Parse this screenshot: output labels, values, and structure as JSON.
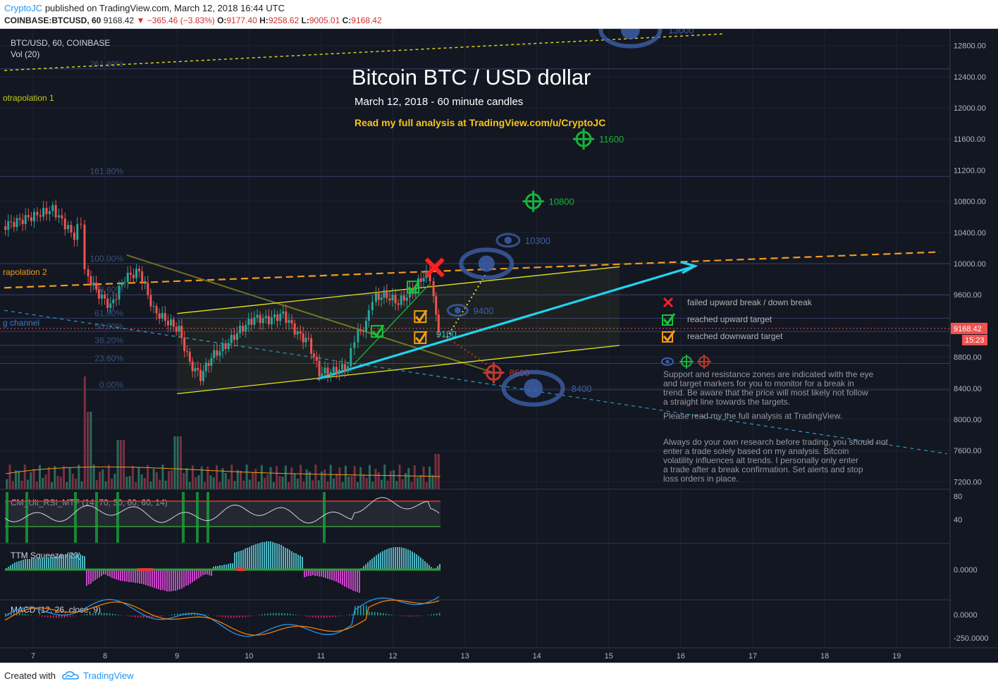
{
  "header": {
    "author": "CryptoJC",
    "published": "published on TradingView.com, March 12, 2018 16:44 UTC",
    "symbol_line": "COINBASE:BTCUSD, 60",
    "last": "9168.42",
    "change": "▼ −365.46 (−3.83%)",
    "ohlc": {
      "o_label": "O:",
      "o": "9177.40",
      "h_label": "H:",
      "h": "9258.62",
      "l_label": "L:",
      "l": "9005.01",
      "c_label": "C:",
      "c": "9168.42"
    }
  },
  "footer": {
    "created": "Created with",
    "brand": "TradingView"
  },
  "chart_title": "Bitcoin BTC / USD dollar",
  "chart_subtitle": "March 12, 2018 - 60 minute candles",
  "chart_link": "Read my full analysis at TradingView.com/u/CryptoJC",
  "pane_labels": {
    "main": "BTC/USD, 60, COINBASE",
    "vol": "Vol (20)",
    "rsi": "CM_Ult_RSI_MTF (14, 70, 30, 60, 60, 14)",
    "ttm": "TTM Squeeze (20)",
    "macd": "MACD (12, 26, close, 9)"
  },
  "drawing_labels": {
    "extrapolation1": "otrapolation 1",
    "extrapolation2": "rapolation 2",
    "channel": "g channel"
  },
  "fib_levels": [
    {
      "label": "261.80%",
      "price": 12500
    },
    {
      "label": "161.80%",
      "price": 11120
    },
    {
      "label": "100.00%",
      "price": 10000
    },
    {
      "label": "78.60%",
      "price": 9600
    },
    {
      "label": "61.80%",
      "price": 9300
    },
    {
      "label": "50.00%",
      "price": 9130
    },
    {
      "label": "38.20%",
      "price": 8950
    },
    {
      "label": "23.60%",
      "price": 8720
    },
    {
      "label": "0.00%",
      "price": 8380
    }
  ],
  "targets": [
    {
      "label": "13000",
      "price": 13000,
      "date": 15.3,
      "kind": "eye",
      "color": "#3d5fa8"
    },
    {
      "label": "11600",
      "price": 11600,
      "date": 14.65,
      "kind": "crosshair",
      "color": "#19b23b"
    },
    {
      "label": "10800",
      "price": 10800,
      "date": 13.95,
      "kind": "crosshair",
      "color": "#19b23b"
    },
    {
      "label": "10300",
      "price": 10300,
      "date": 13.6,
      "kind": "eye",
      "color": "#3d5fa8"
    },
    {
      "label": "9400",
      "price": 9400,
      "date": 12.9,
      "kind": "eye",
      "color": "#3d5fa8"
    },
    {
      "label": "9100",
      "price": 9100,
      "date": 12.6,
      "kind": "text",
      "color": "#2ec4c4"
    },
    {
      "label": "8600",
      "price": 8600,
      "date": 13.4,
      "kind": "crosshair",
      "color": "#c0392b"
    },
    {
      "label": "8400",
      "price": 8400,
      "date": 13.95,
      "kind": "eye",
      "color": "#3d5fa8"
    }
  ],
  "legend": [
    {
      "icon": "red-cross-icon",
      "label": "failed upward break / down break",
      "color": "#ff2020"
    },
    {
      "icon": "green-check-icon",
      "label": "reached upward target",
      "color": "#19c23b"
    },
    {
      "icon": "orange-check-icon",
      "label": "reached downward target",
      "color": "#f39c12"
    }
  ],
  "notes": {
    "p1": "Support and resistance zones are indicated with the eye and target markers for you to monitor for a break in trend. Be aware that the price will most likely not follow a straight line towards the targets.",
    "p2": "Please read my the full analysis at TradingView.",
    "p3": "Always do your own research before trading, you should not enter a trade solely based on my analysis. Bitcoin volatility influences alt trends. I personally only enter a trade after a break confirmation. Set alerts and stop loss orders in place."
  },
  "price_axis": {
    "ticks": [
      "12800.00",
      "12400.00",
      "12000.00",
      "11600.00",
      "11200.00",
      "10800.00",
      "10400.00",
      "10000.00",
      "9600.00",
      "8800.00",
      "8400.00",
      "8000.00",
      "7600.00",
      "7200.00"
    ],
    "last_price_label": "9168.42",
    "countdown": "15:23"
  },
  "rsi_axis": [
    "80",
    "40"
  ],
  "ttm_axis": [
    "0.0000"
  ],
  "macd_axis": [
    "0.0000",
    "-250.0000"
  ],
  "time_axis": [
    "7",
    "8",
    "9",
    "10",
    "11",
    "12",
    "13",
    "14",
    "15",
    "16",
    "17",
    "18",
    "19"
  ],
  "chart_data": {
    "type": "candlestick",
    "title": "Bitcoin BTC / USD dollar",
    "subtitle": "March 12, 2018 - 60 minute candles",
    "x_unit": "day of March 2018",
    "xlim": [
      6.6,
      19.8
    ],
    "ylim": [
      7100,
      12950
    ],
    "price_path": [
      [
        6.6,
        10480
      ],
      [
        7.0,
        10600
      ],
      [
        7.3,
        10700
      ],
      [
        7.6,
        10350
      ],
      [
        7.7,
        10550
      ],
      [
        7.75,
        9900
      ],
      [
        7.9,
        9650
      ],
      [
        8.1,
        9450
      ],
      [
        8.3,
        9820
      ],
      [
        8.5,
        9900
      ],
      [
        8.7,
        9400
      ],
      [
        8.9,
        9250
      ],
      [
        9.05,
        9150
      ],
      [
        9.2,
        8720
      ],
      [
        9.35,
        8550
      ],
      [
        9.5,
        8800
      ],
      [
        9.7,
        8950
      ],
      [
        9.9,
        9150
      ],
      [
        10.1,
        9300
      ],
      [
        10.3,
        9280
      ],
      [
        10.5,
        9350
      ],
      [
        10.7,
        9100
      ],
      [
        10.85,
        9000
      ],
      [
        11.0,
        8600
      ],
      [
        11.2,
        8620
      ],
      [
        11.4,
        8680
      ],
      [
        11.5,
        9050
      ],
      [
        11.65,
        9220
      ],
      [
        11.75,
        9550
      ],
      [
        11.9,
        9600
      ],
      [
        12.1,
        9500
      ],
      [
        12.3,
        9650
      ],
      [
        12.45,
        9850
      ],
      [
        12.55,
        9820
      ],
      [
        12.62,
        9300
      ],
      [
        12.66,
        9168
      ]
    ],
    "volume_peaks": [
      [
        7.7,
        "spike"
      ],
      [
        8.2,
        "medium"
      ],
      [
        9.0,
        "medium"
      ],
      [
        12.6,
        "medium"
      ]
    ],
    "fib_ratios": [
      "261.80%",
      "161.80%",
      "100.00%",
      "78.60%",
      "61.80%",
      "50.00%",
      "38.20%",
      "23.60%",
      "0.00%"
    ]
  },
  "colors": {
    "background": "#131722",
    "up": "#26a69a",
    "down": "#ef5350",
    "grid": "#1f2943",
    "channel": "#e6e61c",
    "trend": "#22d3ee",
    "extrapolation": "#f29a1f"
  }
}
